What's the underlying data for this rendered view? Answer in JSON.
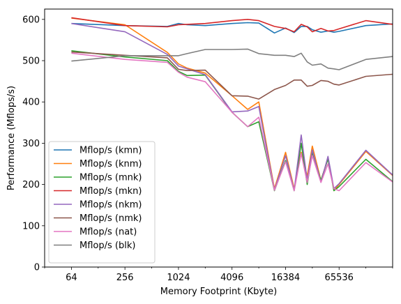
{
  "chart_data": {
    "type": "line",
    "xlabel": "Memory Footprint (Kbyte)",
    "ylabel": "Performance (Mflops/s)",
    "xscale": "log2",
    "xlim": [
      32,
      262144
    ],
    "ylim": [
      0,
      625
    ],
    "xticks": [
      64,
      256,
      1024,
      4096,
      16384,
      65536
    ],
    "xtick_labels": [
      "64",
      "256",
      "1024",
      "4096",
      "16384",
      "65536"
    ],
    "yticks": [
      0,
      100,
      200,
      300,
      400,
      500,
      600
    ],
    "legend_position": "lower-left",
    "grid": false,
    "x": [
      64,
      256,
      768,
      1024,
      1280,
      2048,
      4096,
      6144,
      8192,
      12288,
      16384,
      20480,
      24576,
      28672,
      32768,
      40960,
      49152,
      57344,
      65536,
      131072,
      262144
    ],
    "series": [
      {
        "name": "Mflop/s (kmn)",
        "color": "#1f77b4",
        "values": [
          590,
          585,
          583,
          590,
          587,
          585,
          590,
          592,
          591,
          567,
          579,
          568,
          583,
          583,
          575,
          569,
          572,
          569,
          571,
          585,
          589
        ]
      },
      {
        "name": "Mflop/s (knm)",
        "color": "#ff7f0e",
        "values": [
          603,
          587,
          520,
          492,
          482,
          470,
          415,
          382,
          400,
          190,
          278,
          190,
          278,
          220,
          293,
          210,
          263,
          185,
          200,
          280,
          222
        ]
      },
      {
        "name": "Mflop/s (mnk)",
        "color": "#2ca02c",
        "values": [
          524,
          509,
          500,
          474,
          464,
          465,
          375,
          340,
          352,
          185,
          258,
          185,
          300,
          200,
          278,
          210,
          262,
          185,
          195,
          261,
          207
        ]
      },
      {
        "name": "Mflop/s (mkn)",
        "color": "#d62728",
        "values": [
          604,
          585,
          582,
          587,
          588,
          590,
          597,
          600,
          597,
          583,
          578,
          570,
          588,
          582,
          570,
          578,
          572,
          573,
          577,
          597,
          588
        ]
      },
      {
        "name": "Mflop/s (nkm)",
        "color": "#9467bd",
        "values": [
          590,
          570,
          515,
          487,
          480,
          466,
          376,
          378,
          389,
          187,
          270,
          186,
          320,
          210,
          284,
          205,
          268,
          190,
          202,
          283,
          223
        ]
      },
      {
        "name": "Mflop/s (nmk)",
        "color": "#8c564b",
        "values": [
          521,
          513,
          507,
          479,
          476,
          477,
          415,
          414,
          407,
          430,
          440,
          453,
          453,
          438,
          440,
          452,
          450,
          443,
          441,
          462,
          467
        ]
      },
      {
        "name": "Mflop/s (nat)",
        "color": "#e377c2",
        "values": [
          518,
          503,
          496,
          472,
          460,
          449,
          375,
          340,
          363,
          186,
          255,
          185,
          275,
          205,
          270,
          205,
          250,
          190,
          185,
          253,
          206
        ]
      },
      {
        "name": "Mflop/s (blk)",
        "color": "#7f7f7f",
        "values": [
          499,
          512,
          512,
          512,
          517,
          527,
          527,
          528,
          517,
          513,
          513,
          510,
          518,
          497,
          489,
          492,
          482,
          480,
          478,
          503,
          510
        ]
      }
    ]
  }
}
